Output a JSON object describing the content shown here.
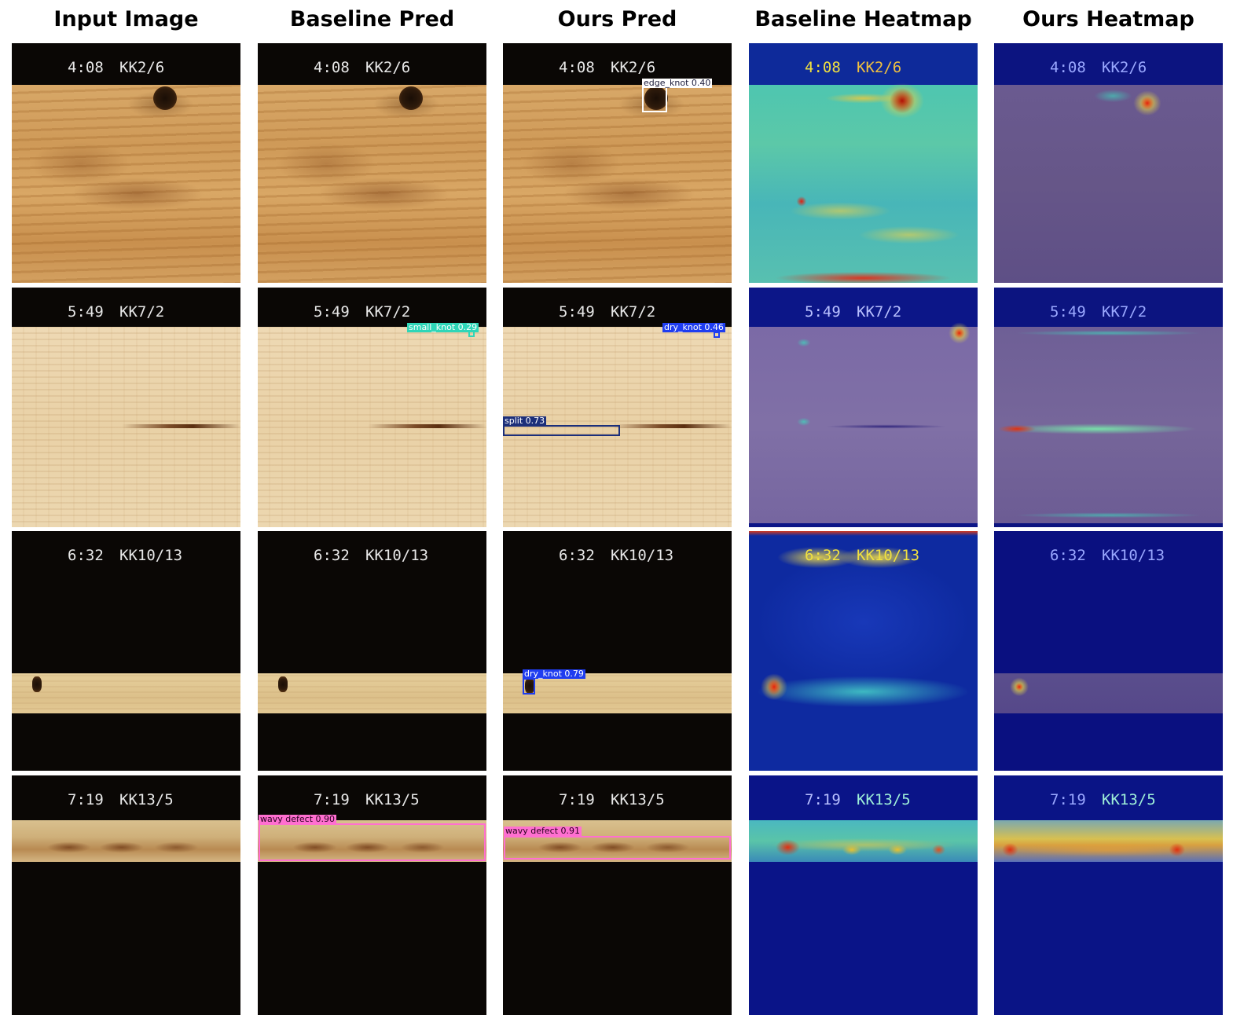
{
  "columns": [
    {
      "id": "input",
      "title": "Input Image"
    },
    {
      "id": "baseline_pred",
      "title": "Baseline Pred"
    },
    {
      "id": "ours_pred",
      "title": "Ours Pred"
    },
    {
      "id": "baseline_heatmap",
      "title": "Baseline Heatmap"
    },
    {
      "id": "ours_heatmap",
      "title": "Ours Heatmap"
    }
  ],
  "rows": [
    {
      "time": "4:08",
      "code": "KK2/6",
      "baseline_detections": [],
      "ours_detections": [
        {
          "label": "edge_knot 0.40",
          "color": "#ffffff",
          "text_color": "#1a1a3a"
        }
      ]
    },
    {
      "time": "5:49",
      "code": "KK7/2",
      "baseline_detections": [
        {
          "label": "small_knot 0.29",
          "color": "#2fd6b8",
          "text_color": "#ffffff"
        }
      ],
      "ours_detections": [
        {
          "label": "dry_knot 0.46",
          "color": "#1f3df0",
          "text_color": "#ffffff"
        },
        {
          "label": "split 0.73",
          "color": "#1c2f7a",
          "text_color": "#ffffff"
        }
      ]
    },
    {
      "time": "6:32",
      "code": "KK10/13",
      "baseline_detections": [],
      "ours_detections": [
        {
          "label": "dry_knot 0.79",
          "color": "#1f3df0",
          "text_color": "#ffffff"
        }
      ]
    },
    {
      "time": "7:19",
      "code": "KK13/5",
      "baseline_detections": [
        {
          "label": "wavy defect 0.90",
          "color": "#ff6fd0",
          "text_color": "#2a0020"
        }
      ],
      "ours_detections": [
        {
          "label": "wavy defect 0.91",
          "color": "#ff6fd0",
          "text_color": "#2a0020"
        }
      ]
    }
  ],
  "colors": {
    "heat_cold": "#0a1a8a",
    "heat_mid": "#2fd0c0",
    "heat_warm": "#f0e040",
    "heat_hot": "#e02010"
  }
}
